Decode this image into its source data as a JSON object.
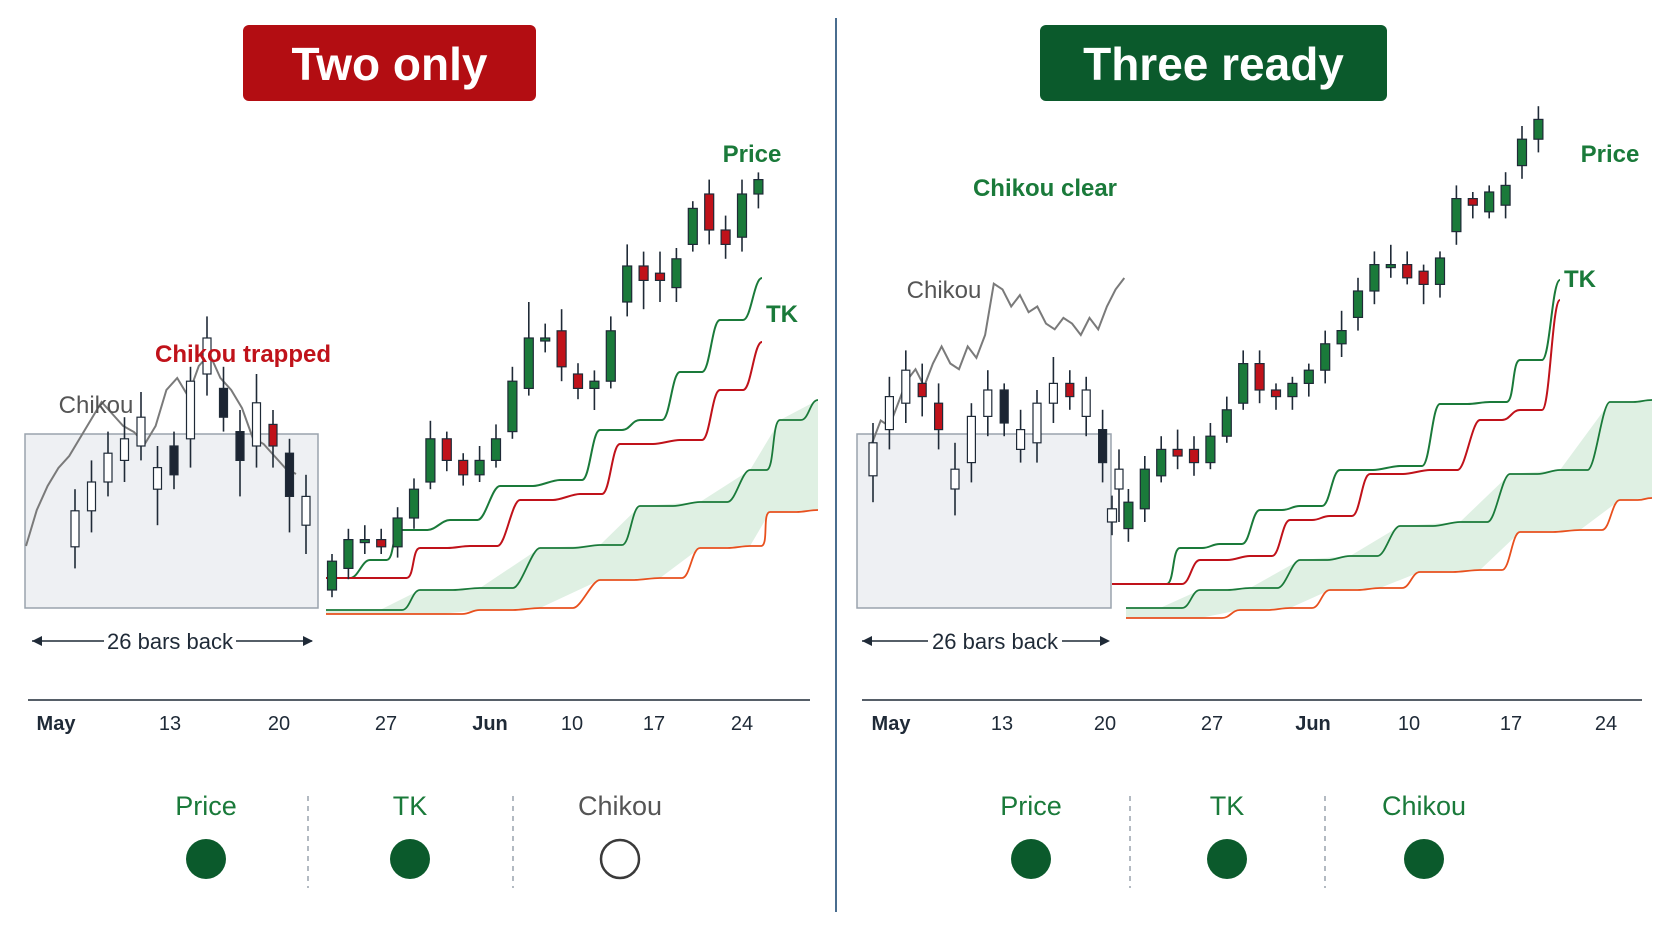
{
  "colors": {
    "green": "#1a7a3a",
    "dark_green": "#0b5a2c",
    "red": "#c0121a",
    "dark_red": "#b30d12",
    "orange": "#e8501e",
    "gray_text": "#555555",
    "chikou_line": "#7a7a7a",
    "cloud_fill": "#dff0e3",
    "box_fill": "#eef0f3",
    "box_stroke": "#9aa3ad",
    "divider": "#4a6d8f",
    "dark_candle": "#1c2533"
  },
  "chart_data": [
    {
      "type": "candlestick",
      "title": "Two only",
      "title_color": "red",
      "x_ticks": [
        "May",
        "13",
        "20",
        "27",
        "Jun",
        "10",
        "17",
        "24"
      ],
      "x_ticks_bold": [
        "May",
        "Jun"
      ],
      "annotations": {
        "price": "Price",
        "tk": "TK",
        "chikou": "Chikou",
        "chikou_status": "Chikou trapped",
        "lookback": "26 bars back"
      },
      "status": [
        {
          "label": "Price",
          "filled": true
        },
        {
          "label": "TK",
          "filled": true
        },
        {
          "label": "Chikou",
          "filled": false
        }
      ],
      "box_candles": [
        {
          "o": 0.12,
          "c": 0.22,
          "h": 0.28,
          "l": 0.06,
          "color": "white"
        },
        {
          "o": 0.22,
          "c": 0.3,
          "h": 0.36,
          "l": 0.16,
          "color": "white"
        },
        {
          "o": 0.3,
          "c": 0.38,
          "h": 0.44,
          "l": 0.26,
          "color": "white"
        },
        {
          "o": 0.36,
          "c": 0.42,
          "h": 0.48,
          "l": 0.3,
          "color": "white"
        },
        {
          "o": 0.4,
          "c": 0.48,
          "h": 0.55,
          "l": 0.36,
          "color": "white"
        },
        {
          "o": 0.34,
          "c": 0.28,
          "h": 0.4,
          "l": 0.18,
          "color": "white"
        },
        {
          "o": 0.4,
          "c": 0.32,
          "h": 0.44,
          "l": 0.28,
          "color": "dark"
        },
        {
          "o": 0.42,
          "c": 0.58,
          "h": 0.62,
          "l": 0.34,
          "color": "white"
        },
        {
          "o": 0.6,
          "c": 0.7,
          "h": 0.76,
          "l": 0.54,
          "color": "white"
        },
        {
          "o": 0.56,
          "c": 0.48,
          "h": 0.62,
          "l": 0.44,
          "color": "dark"
        },
        {
          "o": 0.44,
          "c": 0.36,
          "h": 0.5,
          "l": 0.26,
          "color": "dark"
        },
        {
          "o": 0.4,
          "c": 0.52,
          "h": 0.6,
          "l": 0.34,
          "color": "white"
        },
        {
          "o": 0.46,
          "c": 0.4,
          "h": 0.5,
          "l": 0.34,
          "color": "red"
        },
        {
          "o": 0.38,
          "c": 0.26,
          "h": 0.42,
          "l": 0.16,
          "color": "dark"
        },
        {
          "o": 0.18,
          "c": 0.26,
          "h": 0.32,
          "l": 0.1,
          "color": "white"
        }
      ],
      "main_candles": [
        {
          "o": 0.0,
          "c": 0.08,
          "h": 0.1,
          "l": -0.02,
          "color": "green"
        },
        {
          "o": 0.06,
          "c": 0.14,
          "h": 0.17,
          "l": 0.03,
          "color": "green"
        },
        {
          "o": 0.14,
          "c": 0.14,
          "h": 0.18,
          "l": 0.1,
          "color": "green"
        },
        {
          "o": 0.14,
          "c": 0.12,
          "h": 0.17,
          "l": 0.1,
          "color": "red"
        },
        {
          "o": 0.12,
          "c": 0.2,
          "h": 0.23,
          "l": 0.09,
          "color": "green"
        },
        {
          "o": 0.2,
          "c": 0.28,
          "h": 0.31,
          "l": 0.17,
          "color": "green"
        },
        {
          "o": 0.3,
          "c": 0.42,
          "h": 0.47,
          "l": 0.28,
          "color": "green"
        },
        {
          "o": 0.42,
          "c": 0.36,
          "h": 0.44,
          "l": 0.33,
          "color": "red"
        },
        {
          "o": 0.36,
          "c": 0.32,
          "h": 0.38,
          "l": 0.29,
          "color": "red"
        },
        {
          "o": 0.32,
          "c": 0.36,
          "h": 0.4,
          "l": 0.3,
          "color": "green"
        },
        {
          "o": 0.36,
          "c": 0.42,
          "h": 0.46,
          "l": 0.34,
          "color": "green"
        },
        {
          "o": 0.44,
          "c": 0.58,
          "h": 0.62,
          "l": 0.42,
          "color": "green"
        },
        {
          "o": 0.56,
          "c": 0.7,
          "h": 0.8,
          "l": 0.54,
          "color": "green"
        },
        {
          "o": 0.7,
          "c": 0.7,
          "h": 0.74,
          "l": 0.66,
          "color": "green"
        },
        {
          "o": 0.72,
          "c": 0.62,
          "h": 0.78,
          "l": 0.58,
          "color": "red"
        },
        {
          "o": 0.6,
          "c": 0.56,
          "h": 0.63,
          "l": 0.53,
          "color": "red"
        },
        {
          "o": 0.56,
          "c": 0.58,
          "h": 0.61,
          "l": 0.5,
          "color": "green"
        },
        {
          "o": 0.58,
          "c": 0.72,
          "h": 0.76,
          "l": 0.56,
          "color": "green"
        },
        {
          "o": 0.8,
          "c": 0.9,
          "h": 0.96,
          "l": 0.76,
          "color": "green"
        },
        {
          "o": 0.9,
          "c": 0.86,
          "h": 0.94,
          "l": 0.78,
          "color": "red"
        },
        {
          "o": 0.86,
          "c": 0.88,
          "h": 0.94,
          "l": 0.8,
          "color": "red"
        },
        {
          "o": 0.84,
          "c": 0.92,
          "h": 0.95,
          "l": 0.8,
          "color": "green"
        },
        {
          "o": 0.96,
          "c": 1.06,
          "h": 1.08,
          "l": 0.94,
          "color": "green"
        },
        {
          "o": 1.1,
          "c": 1.0,
          "h": 1.14,
          "l": 0.96,
          "color": "red"
        },
        {
          "o": 1.0,
          "c": 0.96,
          "h": 1.04,
          "l": 0.92,
          "color": "red"
        },
        {
          "o": 0.98,
          "c": 1.1,
          "h": 1.14,
          "l": 0.94,
          "color": "green"
        },
        {
          "o": 1.1,
          "c": 1.14,
          "h": 1.16,
          "l": 1.06,
          "color": "green"
        }
      ],
      "chikou_values": [
        0.18,
        0.3,
        0.38,
        0.44,
        0.48,
        0.54,
        0.6,
        0.66,
        0.62,
        0.58,
        0.56,
        0.52,
        0.58,
        0.7,
        0.74,
        0.68,
        0.78,
        0.82,
        0.74,
        0.7,
        0.64,
        0.54,
        0.52,
        0.48,
        0.44,
        0.42
      ]
    },
    {
      "type": "candlestick",
      "title": "Three ready",
      "title_color": "green",
      "x_ticks": [
        "May",
        "13",
        "20",
        "27",
        "Jun",
        "10",
        "17",
        "24"
      ],
      "x_ticks_bold": [
        "May",
        "Jun"
      ],
      "annotations": {
        "price": "Price",
        "tk": "TK",
        "chikou": "Chikou",
        "chikou_status": "Chikou clear",
        "lookback": "26 bars back"
      },
      "status": [
        {
          "label": "Price",
          "filled": true
        },
        {
          "label": "TK",
          "filled": true
        },
        {
          "label": "Chikou",
          "filled": true
        }
      ],
      "box_candles": [
        {
          "o": 0.34,
          "c": 0.44,
          "h": 0.5,
          "l": 0.26,
          "color": "white"
        },
        {
          "o": 0.48,
          "c": 0.58,
          "h": 0.64,
          "l": 0.42,
          "color": "white"
        },
        {
          "o": 0.56,
          "c": 0.66,
          "h": 0.72,
          "l": 0.5,
          "color": "white"
        },
        {
          "o": 0.62,
          "c": 0.58,
          "h": 0.68,
          "l": 0.52,
          "color": "red"
        },
        {
          "o": 0.56,
          "c": 0.48,
          "h": 0.62,
          "l": 0.42,
          "color": "red"
        },
        {
          "o": 0.36,
          "c": 0.3,
          "h": 0.44,
          "l": 0.22,
          "color": "white"
        },
        {
          "o": 0.38,
          "c": 0.52,
          "h": 0.56,
          "l": 0.32,
          "color": "white"
        },
        {
          "o": 0.52,
          "c": 0.6,
          "h": 0.66,
          "l": 0.46,
          "color": "white"
        },
        {
          "o": 0.6,
          "c": 0.5,
          "h": 0.62,
          "l": 0.46,
          "color": "dark"
        },
        {
          "o": 0.48,
          "c": 0.42,
          "h": 0.54,
          "l": 0.38,
          "color": "white"
        },
        {
          "o": 0.44,
          "c": 0.56,
          "h": 0.6,
          "l": 0.38,
          "color": "white"
        },
        {
          "o": 0.56,
          "c": 0.62,
          "h": 0.7,
          "l": 0.5,
          "color": "white"
        },
        {
          "o": 0.62,
          "c": 0.58,
          "h": 0.66,
          "l": 0.54,
          "color": "red"
        },
        {
          "o": 0.6,
          "c": 0.52,
          "h": 0.64,
          "l": 0.46,
          "color": "white"
        },
        {
          "o": 0.48,
          "c": 0.38,
          "h": 0.54,
          "l": 0.32,
          "color": "dark"
        },
        {
          "o": 0.36,
          "c": 0.3,
          "h": 0.42,
          "l": 0.2,
          "color": "white"
        }
      ],
      "main_candles": [
        {
          "o": 0.24,
          "c": 0.2,
          "h": 0.28,
          "l": 0.16,
          "color": "white"
        },
        {
          "o": 0.18,
          "c": 0.26,
          "h": 0.3,
          "l": 0.14,
          "color": "green"
        },
        {
          "o": 0.24,
          "c": 0.36,
          "h": 0.4,
          "l": 0.2,
          "color": "green"
        },
        {
          "o": 0.34,
          "c": 0.42,
          "h": 0.46,
          "l": 0.32,
          "color": "green"
        },
        {
          "o": 0.42,
          "c": 0.4,
          "h": 0.48,
          "l": 0.36,
          "color": "red"
        },
        {
          "o": 0.42,
          "c": 0.38,
          "h": 0.46,
          "l": 0.34,
          "color": "red"
        },
        {
          "o": 0.38,
          "c": 0.46,
          "h": 0.5,
          "l": 0.36,
          "color": "green"
        },
        {
          "o": 0.46,
          "c": 0.54,
          "h": 0.58,
          "l": 0.44,
          "color": "green"
        },
        {
          "o": 0.56,
          "c": 0.68,
          "h": 0.72,
          "l": 0.54,
          "color": "green"
        },
        {
          "o": 0.68,
          "c": 0.6,
          "h": 0.72,
          "l": 0.56,
          "color": "red"
        },
        {
          "o": 0.6,
          "c": 0.58,
          "h": 0.62,
          "l": 0.54,
          "color": "red"
        },
        {
          "o": 0.58,
          "c": 0.62,
          "h": 0.64,
          "l": 0.54,
          "color": "green"
        },
        {
          "o": 0.62,
          "c": 0.66,
          "h": 0.68,
          "l": 0.58,
          "color": "green"
        },
        {
          "o": 0.66,
          "c": 0.74,
          "h": 0.78,
          "l": 0.62,
          "color": "green"
        },
        {
          "o": 0.74,
          "c": 0.78,
          "h": 0.84,
          "l": 0.7,
          "color": "green"
        },
        {
          "o": 0.82,
          "c": 0.9,
          "h": 0.94,
          "l": 0.78,
          "color": "green"
        },
        {
          "o": 0.9,
          "c": 0.98,
          "h": 1.02,
          "l": 0.86,
          "color": "green"
        },
        {
          "o": 0.98,
          "c": 0.98,
          "h": 1.04,
          "l": 0.94,
          "color": "green"
        },
        {
          "o": 0.98,
          "c": 0.94,
          "h": 1.02,
          "l": 0.92,
          "color": "red"
        },
        {
          "o": 0.96,
          "c": 0.92,
          "h": 0.98,
          "l": 0.86,
          "color": "red"
        },
        {
          "o": 0.92,
          "c": 1.0,
          "h": 1.02,
          "l": 0.88,
          "color": "green"
        },
        {
          "o": 1.08,
          "c": 1.18,
          "h": 1.22,
          "l": 1.04,
          "color": "green"
        },
        {
          "o": 1.18,
          "c": 1.16,
          "h": 1.2,
          "l": 1.12,
          "color": "red"
        },
        {
          "o": 1.14,
          "c": 1.2,
          "h": 1.22,
          "l": 1.12,
          "color": "green"
        },
        {
          "o": 1.16,
          "c": 1.22,
          "h": 1.26,
          "l": 1.12,
          "color": "green"
        },
        {
          "o": 1.28,
          "c": 1.36,
          "h": 1.4,
          "l": 1.24,
          "color": "green"
        },
        {
          "o": 1.36,
          "c": 1.42,
          "h": 1.46,
          "l": 1.32,
          "color": "green"
        }
      ],
      "chikou_values": [
        0.62,
        0.7,
        0.68,
        0.76,
        0.84,
        0.88,
        0.82,
        0.9,
        0.96,
        0.9,
        0.88,
        0.96,
        0.92,
        1.0,
        1.18,
        1.16,
        1.1,
        1.14,
        1.08,
        1.1,
        1.04,
        1.02,
        1.06,
        1.04,
        1.0,
        1.06,
        1.02,
        1.1,
        1.16,
        1.2
      ]
    }
  ]
}
